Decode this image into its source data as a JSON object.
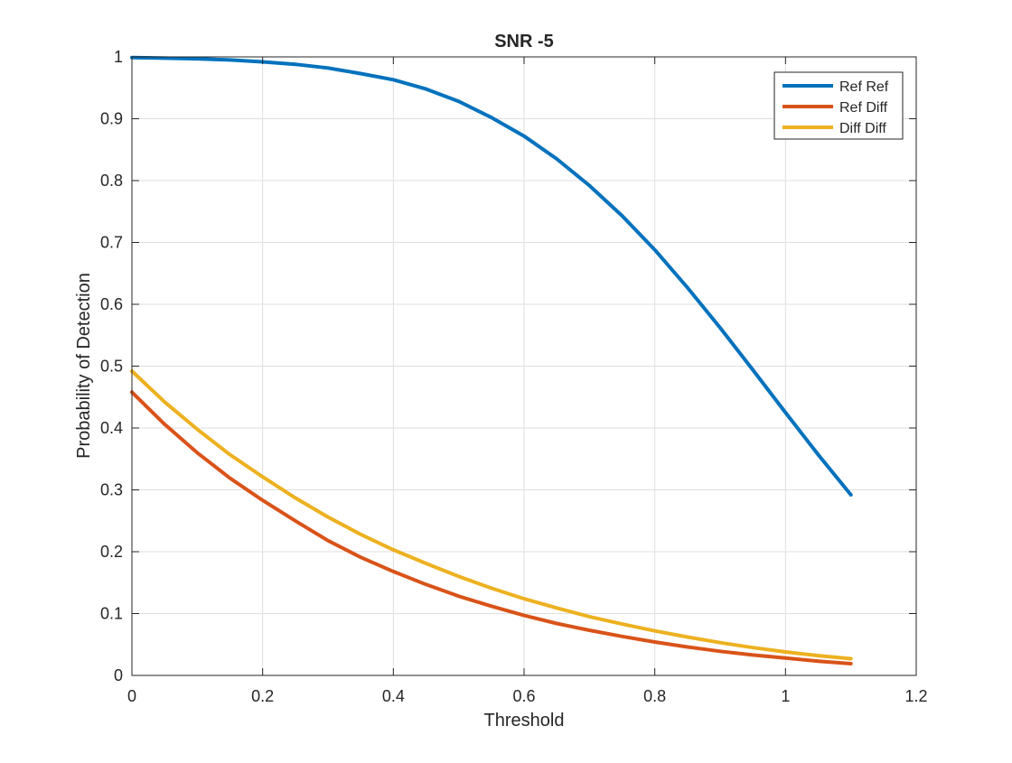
{
  "chart_data": {
    "type": "line",
    "title": "SNR -5",
    "xlabel": "Threshold",
    "ylabel": "Probability of Detection",
    "xlim": [
      0,
      1.2
    ],
    "ylim": [
      0,
      1
    ],
    "xticks": [
      0,
      0.2,
      0.4,
      0.6,
      0.8,
      1,
      1.2
    ],
    "yticks": [
      0,
      0.1,
      0.2,
      0.3,
      0.4,
      0.5,
      0.6,
      0.7,
      0.8,
      0.9,
      1
    ],
    "grid": true,
    "legend_position": "top-right",
    "series": [
      {
        "name": "Ref Ref",
        "color": "#0072BD",
        "x": [
          0,
          0.05,
          0.1,
          0.15,
          0.2,
          0.25,
          0.3,
          0.35,
          0.4,
          0.45,
          0.5,
          0.55,
          0.6,
          0.65,
          0.7,
          0.75,
          0.8,
          0.85,
          0.9,
          0.95,
          1.0,
          1.05,
          1.1
        ],
        "y": [
          0.999,
          0.998,
          0.997,
          0.995,
          0.992,
          0.988,
          0.982,
          0.973,
          0.963,
          0.948,
          0.928,
          0.902,
          0.872,
          0.835,
          0.792,
          0.743,
          0.688,
          0.627,
          0.562,
          0.494,
          0.425,
          0.357,
          0.292
        ]
      },
      {
        "name": "Ref Diff",
        "color": "#D95319",
        "x": [
          0,
          0.05,
          0.1,
          0.15,
          0.2,
          0.25,
          0.3,
          0.35,
          0.4,
          0.45,
          0.5,
          0.55,
          0.6,
          0.65,
          0.7,
          0.75,
          0.8,
          0.85,
          0.9,
          0.95,
          1.0,
          1.05,
          1.1
        ],
        "y": [
          0.458,
          0.406,
          0.36,
          0.319,
          0.283,
          0.25,
          0.218,
          0.191,
          0.168,
          0.147,
          0.128,
          0.112,
          0.097,
          0.084,
          0.073,
          0.063,
          0.054,
          0.046,
          0.039,
          0.033,
          0.028,
          0.023,
          0.019
        ]
      },
      {
        "name": "Diff Diff",
        "color": "#EDB120",
        "x": [
          0,
          0.05,
          0.1,
          0.15,
          0.2,
          0.25,
          0.3,
          0.35,
          0.4,
          0.45,
          0.5,
          0.55,
          0.6,
          0.65,
          0.7,
          0.75,
          0.8,
          0.85,
          0.9,
          0.95,
          1.0,
          1.05,
          1.1
        ],
        "y": [
          0.492,
          0.442,
          0.398,
          0.357,
          0.321,
          0.287,
          0.256,
          0.228,
          0.203,
          0.181,
          0.16,
          0.141,
          0.124,
          0.109,
          0.095,
          0.083,
          0.072,
          0.062,
          0.053,
          0.045,
          0.038,
          0.032,
          0.027
        ]
      }
    ]
  }
}
